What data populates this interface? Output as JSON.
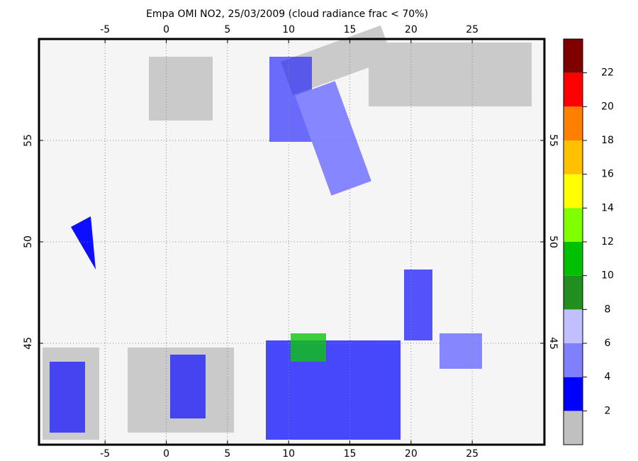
{
  "chart_data": {
    "type": "map",
    "title": "Empa OMI NO2, 25/03/2009 (cloud radiance frac < 70%)",
    "xlim": [
      -10.4,
      30.9
    ],
    "ylim": [
      40,
      60
    ],
    "xticks": [
      -5,
      0,
      5,
      10,
      15,
      20,
      25
    ],
    "yticks": [
      45,
      50,
      55
    ],
    "grid": true,
    "colorbar": {
      "bounds": [
        0,
        2,
        4,
        6,
        8,
        10,
        12,
        14,
        16,
        18,
        20,
        22,
        24
      ],
      "colors": [
        "#c0c0c0",
        "#0000ff",
        "#8080ff",
        "#c0c0ff",
        "#208f20",
        "#00c000",
        "#80ff00",
        "#ffff00",
        "#ffc000",
        "#ff8000",
        "#ff0000",
        "#800000"
      ],
      "ticks": [
        2,
        4,
        6,
        8,
        10,
        12,
        14,
        16,
        18,
        20,
        22
      ]
    }
  }
}
